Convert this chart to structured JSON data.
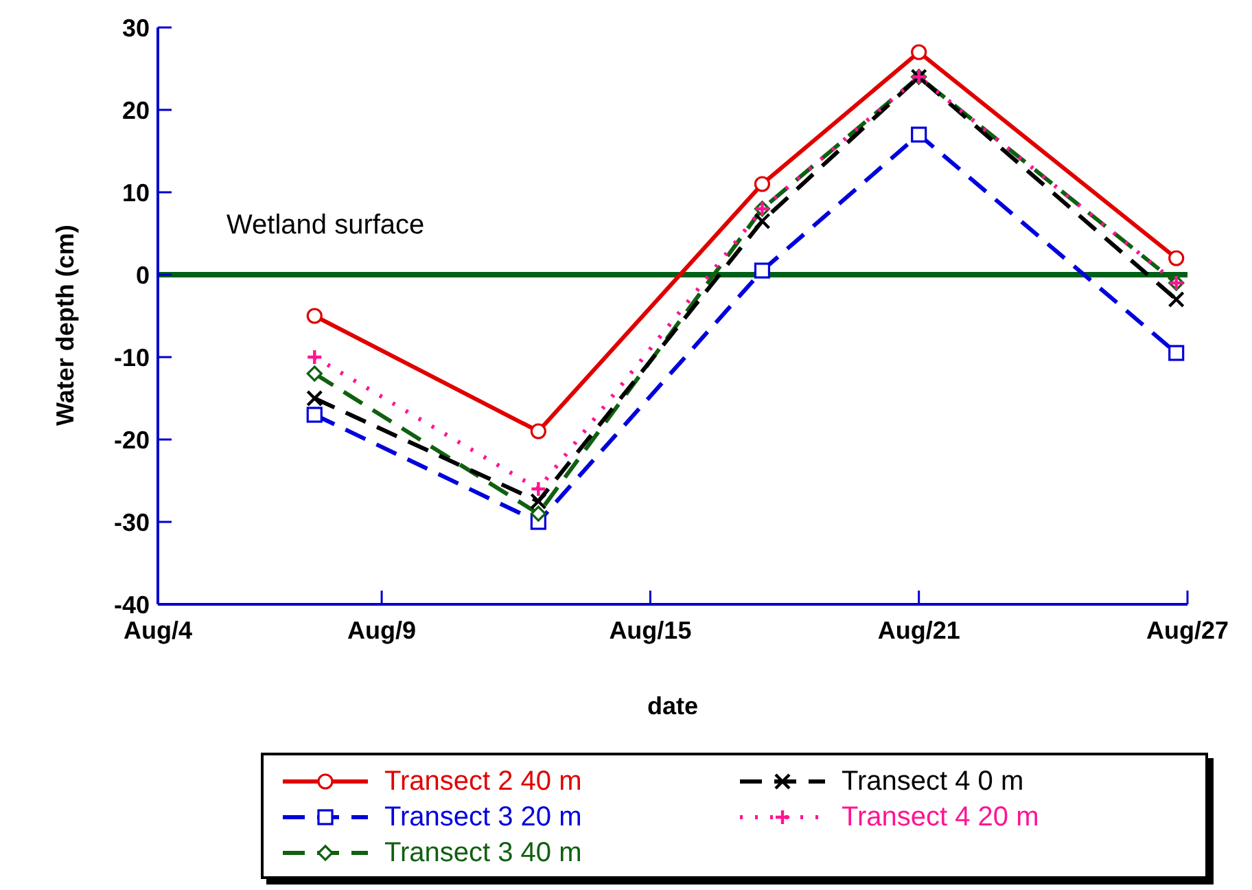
{
  "chart_data": {
    "type": "line",
    "xlabel": "date",
    "ylabel": "Water depth (cm)",
    "x": [
      "--08-07T12:00",
      "--08-12T12:00",
      "--08-17T12:00",
      "--08-21",
      "--08-26T18:00"
    ],
    "xlim": [
      "--08-04",
      "--08-27"
    ],
    "xticks": [
      {
        "value": "--08-04",
        "label": "Aug/4"
      },
      {
        "value": "--08-09",
        "label": "Aug/9"
      },
      {
        "value": "--08-15",
        "label": "Aug/15"
      },
      {
        "value": "--08-21",
        "label": "Aug/21"
      },
      {
        "value": "--08-27",
        "label": "Aug/27"
      }
    ],
    "ylim": [
      -40,
      30
    ],
    "yticks": [
      -40,
      -30,
      -20,
      -10,
      0,
      10,
      20,
      30
    ],
    "series": [
      {
        "name": "Transect 2 40 m",
        "color": "#e00000",
        "values": [
          -5,
          -19,
          11,
          27,
          2
        ],
        "marker": "circle",
        "line_style": "solid"
      },
      {
        "name": "Transect 3 20 m",
        "color": "#0000dd",
        "values": [
          -17,
          -30,
          0.5,
          17,
          -9.5
        ],
        "marker": "square",
        "line_style": "dashed"
      },
      {
        "name": "Transect 3 40 m",
        "color": "#106010",
        "values": [
          -12,
          -29,
          8,
          24,
          -1
        ],
        "marker": "diamond",
        "line_style": "dashed"
      },
      {
        "name": "Transect 4 0 m",
        "color": "#000000",
        "values": [
          -15,
          -27.5,
          6.5,
          24,
          -3
        ],
        "marker": "cross",
        "line_style": "dashed"
      },
      {
        "name": "Transect 4 20 m",
        "color": "#ff1493",
        "values": [
          -10,
          -26,
          8,
          24,
          -1
        ],
        "marker": "plus",
        "line_style": "dotted"
      }
    ],
    "ref_lines": [
      {
        "axis": "y",
        "value": 0,
        "label": "Wetland surface",
        "color": "#006018"
      }
    ],
    "grid": false,
    "legend": "bottom"
  }
}
